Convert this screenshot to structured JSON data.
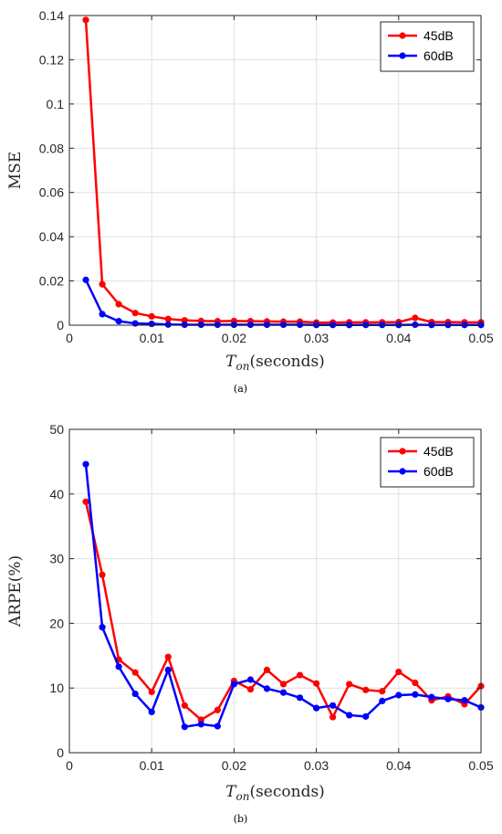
{
  "chart_data": [
    {
      "type": "line",
      "sublabel": "(a)",
      "ylabel": "MSE",
      "xlabel_main": "T",
      "xlabel_sub": "on",
      "xlabel_rest": "(seconds)",
      "xlim": [
        0,
        0.05
      ],
      "ylim": [
        0,
        0.14
      ],
      "xticks": [
        "0",
        "0.01",
        "0.02",
        "0.03",
        "0.04",
        "0.05"
      ],
      "yticks": [
        "0",
        "0.02",
        "0.04",
        "0.06",
        "0.08",
        "0.1",
        "0.12",
        "0.14"
      ],
      "xtick_values": [
        0,
        0.01,
        0.02,
        0.03,
        0.04,
        0.05
      ],
      "ytick_values": [
        0,
        0.02,
        0.04,
        0.06,
        0.08,
        0.1,
        0.12,
        0.14
      ],
      "grid": true,
      "legend": "top-right",
      "x": [
        0.002,
        0.004,
        0.006,
        0.008,
        0.01,
        0.012,
        0.014,
        0.016,
        0.018,
        0.02,
        0.022,
        0.024,
        0.026,
        0.028,
        0.03,
        0.032,
        0.034,
        0.036,
        0.038,
        0.04,
        0.042,
        0.044,
        0.046,
        0.048,
        0.05
      ],
      "series": [
        {
          "name": "45dB",
          "color": "#ff0000",
          "values": [
            0.138,
            0.0185,
            0.0095,
            0.0055,
            0.004,
            0.0028,
            0.0022,
            0.0019,
            0.0018,
            0.0019,
            0.0018,
            0.0017,
            0.0016,
            0.0016,
            0.0012,
            0.0012,
            0.0013,
            0.0013,
            0.0013,
            0.0014,
            0.0033,
            0.0014,
            0.0014,
            0.0013,
            0.0013
          ]
        },
        {
          "name": "60dB",
          "color": "#0000ff",
          "values": [
            0.0205,
            0.005,
            0.0018,
            0.0008,
            0.0006,
            0.0003,
            0.0002,
            0.0002,
            0.0002,
            0.0002,
            0.0002,
            0.0002,
            0.0002,
            0.0002,
            0.0001,
            0.0001,
            0.0001,
            0.0001,
            0.0001,
            0.0001,
            0.0002,
            0.0001,
            0.0001,
            0.0001,
            0.0001
          ]
        }
      ]
    },
    {
      "type": "line",
      "sublabel": "(b)",
      "ylabel": "ARPE(%)",
      "xlabel_main": "T",
      "xlabel_sub": "on",
      "xlabel_rest": "(seconds)",
      "xlim": [
        0,
        0.05
      ],
      "ylim": [
        0,
        50
      ],
      "xticks": [
        "0",
        "0.01",
        "0.02",
        "0.03",
        "0.04",
        "0.05"
      ],
      "yticks": [
        "0",
        "10",
        "20",
        "30",
        "40",
        "50"
      ],
      "xtick_values": [
        0,
        0.01,
        0.02,
        0.03,
        0.04,
        0.05
      ],
      "ytick_values": [
        0,
        10,
        20,
        30,
        40,
        50
      ],
      "grid": true,
      "legend": "top-right",
      "x": [
        0.002,
        0.004,
        0.006,
        0.008,
        0.01,
        0.012,
        0.014,
        0.016,
        0.018,
        0.02,
        0.022,
        0.024,
        0.026,
        0.028,
        0.03,
        0.032,
        0.034,
        0.036,
        0.038,
        0.04,
        0.042,
        0.044,
        0.046,
        0.048,
        0.05
      ],
      "series": [
        {
          "name": "45dB",
          "color": "#ff0000",
          "values": [
            38.8,
            27.5,
            14.4,
            12.4,
            9.4,
            14.8,
            7.3,
            5.1,
            6.6,
            11.1,
            9.8,
            12.8,
            10.6,
            12.0,
            10.7,
            5.5,
            10.6,
            9.7,
            9.5,
            12.5,
            10.8,
            8.1,
            8.7,
            7.5,
            10.3
          ]
        },
        {
          "name": "60dB",
          "color": "#0000ff",
          "values": [
            44.6,
            19.4,
            13.3,
            9.1,
            6.3,
            12.8,
            4.0,
            4.4,
            4.1,
            10.6,
            11.3,
            9.9,
            9.3,
            8.5,
            6.9,
            7.3,
            5.8,
            5.6,
            8.0,
            8.9,
            9.0,
            8.6,
            8.3,
            8.1,
            7.0
          ]
        }
      ]
    }
  ]
}
